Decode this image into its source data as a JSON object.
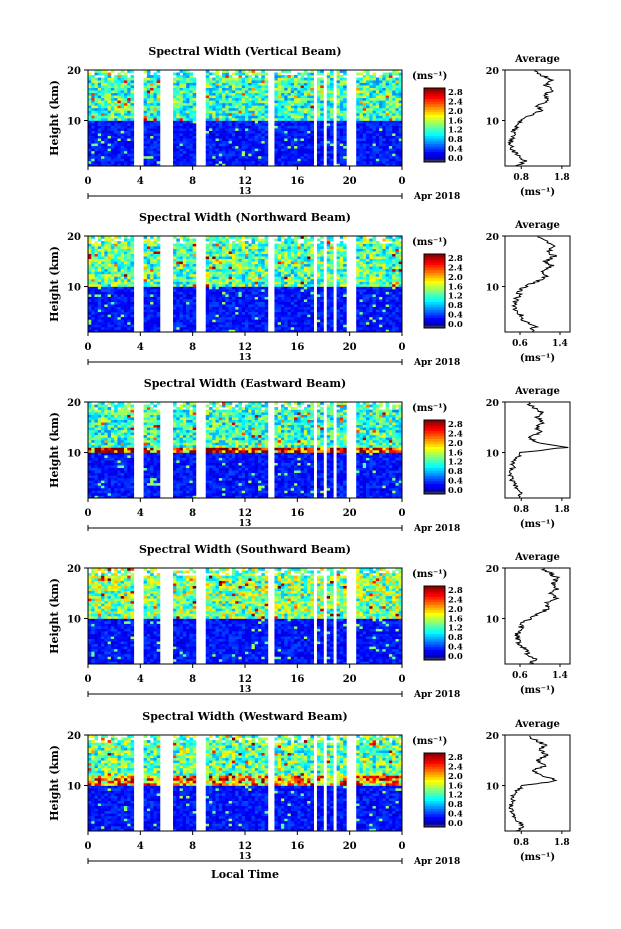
{
  "figure": {
    "xlabel": "Local Time",
    "date_label": "Apr 2018",
    "day_label": "13",
    "ylabel": "Height (km)",
    "colorbar_unit": "(ms⁻¹)",
    "avg_unit": "(ms⁻¹)"
  },
  "chart_data": [
    {
      "type": "heatmap",
      "title": "Spectral Width (Vertical Beam)",
      "xlabel": "Local Time",
      "ylabel": "Height (km)",
      "xlim": [
        0,
        24
      ],
      "ylim": [
        1,
        20
      ],
      "xticks": [
        "0",
        "4",
        "8",
        "12",
        "16",
        "20",
        "0"
      ],
      "yticks": [
        "10",
        "20"
      ],
      "colorbar": {
        "label": "(ms⁻¹)",
        "ticks": [
          "2.8",
          "2.4",
          "2.0",
          "1.6",
          "1.2",
          "0.8",
          "0.4",
          "0.0"
        ],
        "range": [
          0,
          2.8
        ]
      },
      "data_gaps_hours": [
        [
          3.6,
          4.3
        ],
        [
          5.6,
          6.6
        ],
        [
          8.3,
          9.0
        ],
        [
          13.8,
          14.3
        ],
        [
          17.3,
          17.5
        ],
        [
          17.9,
          18.2
        ],
        [
          18.8,
          19.0
        ],
        [
          19.8,
          20.5
        ]
      ],
      "layers": [
        {
          "height_range": [
            1,
            10
          ],
          "typical_width": 0.4
        },
        {
          "height_range": [
            10,
            20
          ],
          "typical_width": 1.2
        }
      ],
      "average": {
        "title": "Average",
        "xlabel": "(ms⁻¹)",
        "xticks": [
          "0.8",
          "1.8"
        ],
        "xlim": [
          0.4,
          2.0
        ],
        "yticks": [
          "10",
          "20"
        ],
        "heights": [
          1,
          2,
          3,
          4,
          5,
          6,
          7,
          8,
          9,
          10,
          11,
          12,
          13,
          14,
          15,
          16,
          17,
          18,
          19,
          20
        ],
        "values": [
          0.7,
          0.9,
          0.75,
          0.6,
          0.55,
          0.55,
          0.6,
          0.6,
          0.7,
          0.8,
          1.0,
          1.3,
          1.2,
          1.5,
          1.35,
          1.6,
          1.4,
          1.55,
          1.3,
          1.1
        ]
      }
    },
    {
      "type": "heatmap",
      "title": "Spectral Width (Northward Beam)",
      "xlabel": "Local Time",
      "ylabel": "Height (km)",
      "xlim": [
        0,
        24
      ],
      "ylim": [
        1,
        20
      ],
      "xticks": [
        "0",
        "4",
        "8",
        "12",
        "16",
        "20",
        "0"
      ],
      "yticks": [
        "10",
        "20"
      ],
      "colorbar": {
        "label": "(ms⁻¹)",
        "ticks": [
          "2.8",
          "2.4",
          "2.0",
          "1.6",
          "1.2",
          "0.8",
          "0.4",
          "0.0"
        ],
        "range": [
          0,
          2.8
        ]
      },
      "data_gaps_hours": [
        [
          3.6,
          4.3
        ],
        [
          5.6,
          6.6
        ],
        [
          8.3,
          9.0
        ],
        [
          13.8,
          14.3
        ],
        [
          17.3,
          17.5
        ],
        [
          17.9,
          18.2
        ],
        [
          18.8,
          19.0
        ],
        [
          19.8,
          20.5
        ]
      ],
      "layers": [
        {
          "height_range": [
            1,
            10
          ],
          "typical_width": 0.4
        },
        {
          "height_range": [
            10,
            20
          ],
          "typical_width": 1.3
        }
      ],
      "average": {
        "title": "Average",
        "xlabel": "(ms⁻¹)",
        "xticks": [
          "0.6",
          "1.4"
        ],
        "xlim": [
          0.3,
          1.6
        ],
        "yticks": [
          "10",
          "20"
        ],
        "heights": [
          1,
          2,
          3,
          4,
          5,
          6,
          7,
          8,
          9,
          10,
          11,
          12,
          13,
          14,
          15,
          16,
          17,
          18,
          19,
          20
        ],
        "values": [
          0.8,
          0.9,
          0.7,
          0.65,
          0.55,
          0.5,
          0.5,
          0.55,
          0.6,
          0.7,
          0.95,
          1.1,
          1.05,
          1.25,
          1.1,
          1.3,
          1.15,
          1.3,
          1.1,
          0.9
        ]
      }
    },
    {
      "type": "heatmap",
      "title": "Spectral Width (Eastward Beam)",
      "xlabel": "Local Time",
      "ylabel": "Height (km)",
      "xlim": [
        0,
        24
      ],
      "ylim": [
        1,
        20
      ],
      "xticks": [
        "0",
        "4",
        "8",
        "12",
        "16",
        "20",
        "0"
      ],
      "yticks": [
        "10",
        "20"
      ],
      "colorbar": {
        "label": "(ms⁻¹)",
        "ticks": [
          "2.8",
          "2.4",
          "2.0",
          "1.6",
          "1.2",
          "0.8",
          "0.4",
          "0.0"
        ],
        "range": [
          0,
          2.8
        ]
      },
      "data_gaps_hours": [
        [
          3.6,
          4.3
        ],
        [
          5.6,
          6.6
        ],
        [
          8.3,
          9.0
        ],
        [
          13.8,
          14.3
        ],
        [
          17.3,
          17.5
        ],
        [
          17.9,
          18.2
        ],
        [
          18.8,
          19.0
        ],
        [
          19.8,
          20.5
        ]
      ],
      "layers": [
        {
          "height_range": [
            1,
            10
          ],
          "typical_width": 0.4
        },
        {
          "height_range": [
            10,
            11
          ],
          "typical_width": 2.4
        },
        {
          "height_range": [
            11,
            20
          ],
          "typical_width": 1.2
        }
      ],
      "average": {
        "title": "Average",
        "xlabel": "(ms⁻¹)",
        "xticks": [
          "0.8",
          "1.8"
        ],
        "xlim": [
          0.4,
          2.0
        ],
        "yticks": [
          "10",
          "20"
        ],
        "heights": [
          1,
          2,
          3,
          4,
          5,
          6,
          7,
          8,
          9,
          10,
          11,
          12,
          13,
          14,
          15,
          16,
          17,
          18,
          19,
          20
        ],
        "values": [
          0.7,
          0.8,
          0.7,
          0.6,
          0.55,
          0.55,
          0.6,
          0.6,
          0.7,
          0.8,
          1.9,
          1.2,
          1.0,
          1.3,
          1.15,
          1.35,
          1.2,
          1.3,
          1.1,
          0.9
        ]
      }
    },
    {
      "type": "heatmap",
      "title": "Spectral Width (Southward Beam)",
      "xlabel": "Local Time",
      "ylabel": "Height (km)",
      "xlim": [
        0,
        24
      ],
      "ylim": [
        1,
        20
      ],
      "xticks": [
        "0",
        "4",
        "8",
        "12",
        "16",
        "20",
        "0"
      ],
      "yticks": [
        "10",
        "20"
      ],
      "colorbar": {
        "label": "(ms⁻¹)",
        "ticks": [
          "2.8",
          "2.4",
          "2.0",
          "1.6",
          "1.2",
          "0.8",
          "0.4",
          "0.0"
        ],
        "range": [
          0,
          2.8
        ]
      },
      "data_gaps_hours": [
        [
          3.6,
          4.3
        ],
        [
          5.6,
          6.6
        ],
        [
          8.3,
          9.0
        ],
        [
          13.8,
          14.3
        ],
        [
          17.3,
          17.5
        ],
        [
          17.9,
          18.2
        ],
        [
          18.8,
          19.0
        ],
        [
          19.8,
          20.5
        ]
      ],
      "layers": [
        {
          "height_range": [
            1,
            10
          ],
          "typical_width": 0.4
        },
        {
          "height_range": [
            10,
            20
          ],
          "typical_width": 1.4
        }
      ],
      "average": {
        "title": "Average",
        "xlabel": "(ms⁻¹)",
        "xticks": [
          "0.6",
          "1.4"
        ],
        "xlim": [
          0.3,
          1.6
        ],
        "yticks": [
          "10",
          "20"
        ],
        "heights": [
          1,
          2,
          3,
          4,
          5,
          6,
          7,
          8,
          9,
          10,
          11,
          12,
          13,
          14,
          15,
          16,
          17,
          18,
          19,
          20
        ],
        "values": [
          0.8,
          0.9,
          0.75,
          0.7,
          0.6,
          0.55,
          0.55,
          0.6,
          0.65,
          0.8,
          1.0,
          1.15,
          1.1,
          1.3,
          1.2,
          1.35,
          1.25,
          1.35,
          1.2,
          1.0
        ]
      }
    },
    {
      "type": "heatmap",
      "title": "Spectral Width (Westward Beam)",
      "xlabel": "Local Time",
      "ylabel": "Height (km)",
      "xlim": [
        0,
        24
      ],
      "ylim": [
        1,
        20
      ],
      "xticks": [
        "0",
        "4",
        "8",
        "12",
        "16",
        "20",
        "0"
      ],
      "yticks": [
        "10",
        "20"
      ],
      "colorbar": {
        "label": "(ms⁻¹)",
        "ticks": [
          "2.8",
          "2.4",
          "2.0",
          "1.6",
          "1.2",
          "0.8",
          "0.4",
          "0.0"
        ],
        "range": [
          0,
          2.8
        ]
      },
      "data_gaps_hours": [
        [
          3.6,
          4.3
        ],
        [
          5.6,
          6.6
        ],
        [
          8.3,
          9.0
        ],
        [
          13.8,
          14.3
        ],
        [
          17.3,
          17.5
        ],
        [
          17.9,
          18.2
        ],
        [
          18.8,
          19.0
        ],
        [
          19.8,
          20.5
        ]
      ],
      "layers": [
        {
          "height_range": [
            1,
            10
          ],
          "typical_width": 0.4
        },
        {
          "height_range": [
            10,
            12
          ],
          "typical_width": 2.0
        },
        {
          "height_range": [
            12,
            20
          ],
          "typical_width": 1.3
        }
      ],
      "average": {
        "title": "Average",
        "xlabel": "(ms⁻¹)",
        "xticks": [
          "0.8",
          "1.8"
        ],
        "xlim": [
          0.4,
          2.0
        ],
        "yticks": [
          "10",
          "20"
        ],
        "heights": [
          1,
          2,
          3,
          4,
          5,
          6,
          7,
          8,
          9,
          10,
          11,
          12,
          13,
          14,
          15,
          16,
          17,
          18,
          19,
          20
        ],
        "values": [
          0.7,
          0.85,
          0.7,
          0.6,
          0.55,
          0.55,
          0.6,
          0.6,
          0.7,
          0.85,
          1.7,
          1.3,
          1.1,
          1.4,
          1.2,
          1.45,
          1.25,
          1.4,
          1.15,
          0.95
        ]
      }
    }
  ]
}
